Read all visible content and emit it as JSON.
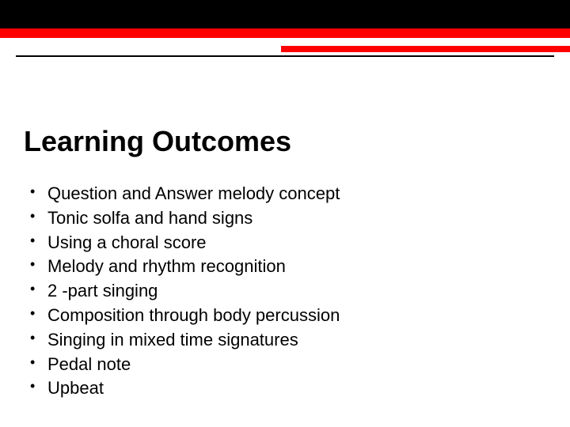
{
  "slide": {
    "title": "Learning Outcomes",
    "bullets": [
      "Question and Answer melody concept",
      "Tonic solfa and hand signs",
      "Using a choral score",
      "Melody and rhythm recognition",
      "2 -part singing",
      "Composition through body percussion",
      "Singing in mixed time signatures",
      "Pedal note",
      "Upbeat"
    ]
  },
  "theme": {
    "header_black_height": 36,
    "header_red_full_height": 12,
    "header_red_partial_width": 365,
    "header_red_partial_height": 8,
    "colors": {
      "black": "#000000",
      "red": "#ff0000",
      "background": "#ffffff",
      "text": "#000000"
    },
    "title_fontsize": 36,
    "bullet_fontsize": 22
  }
}
